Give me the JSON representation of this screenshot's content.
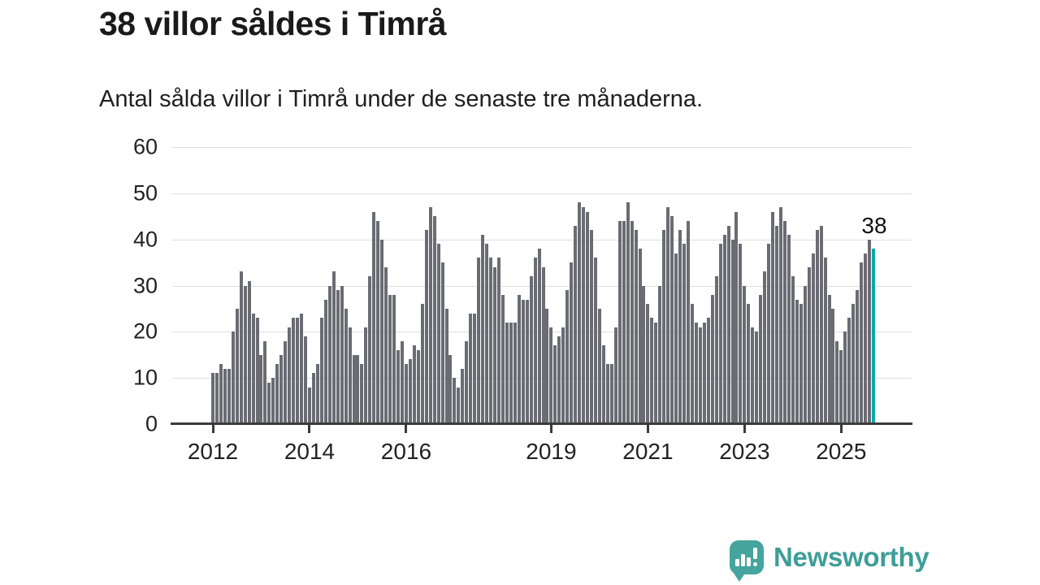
{
  "header": {
    "title": "38 villor såldes i Timrå",
    "subtitle": "Antal sålda villor i Timrå under de senaste tre månaderna."
  },
  "annotation": {
    "last_value_label": "38"
  },
  "footer": {
    "brand": "Newsworthy",
    "brand_color": "#3d9e98",
    "logo_icon": "speech-bubble-bar-chart-icon"
  },
  "chart_data": {
    "type": "bar",
    "title": "38 villor såldes i Timrå",
    "subtitle": "Antal sålda villor i Timrå under de senaste tre månaderna.",
    "frequency": "monthly",
    "x_start": "2012-01",
    "x_end": "2025-09",
    "ylim": [
      0,
      60
    ],
    "y_ticks": [
      0,
      10,
      20,
      30,
      40,
      50,
      60
    ],
    "x_ticks": [
      {
        "label": "2012",
        "index": 0
      },
      {
        "label": "2014",
        "index": 24
      },
      {
        "label": "2016",
        "index": 48
      },
      {
        "label": "2019",
        "index": 84
      },
      {
        "label": "2021",
        "index": 108
      },
      {
        "label": "2023",
        "index": 132
      },
      {
        "label": "2025",
        "index": 156
      }
    ],
    "grid": "horizontal",
    "legend": "none",
    "bar_color": "#6b6b73",
    "highlight": {
      "index": 164,
      "value": 38,
      "label": "38",
      "color": "#0aa9ac"
    },
    "values": [
      11,
      11,
      13,
      12,
      12,
      20,
      25,
      33,
      30,
      31,
      24,
      23,
      15,
      18,
      9,
      10,
      13,
      15,
      18,
      21,
      23,
      23,
      24,
      19,
      8,
      11,
      13,
      23,
      27,
      30,
      33,
      29,
      30,
      25,
      21,
      15,
      15,
      13,
      21,
      32,
      46,
      44,
      40,
      34,
      28,
      28,
      16,
      18,
      13,
      14,
      17,
      16,
      26,
      42,
      47,
      45,
      39,
      35,
      25,
      15,
      10,
      8,
      12,
      18,
      24,
      24,
      36,
      41,
      39,
      36,
      34,
      36,
      28,
      22,
      22,
      22,
      28,
      27,
      27,
      32,
      36,
      38,
      34,
      25,
      21,
      17,
      19,
      21,
      29,
      35,
      43,
      48,
      47,
      46,
      42,
      36,
      25,
      17,
      13,
      13,
      21,
      44,
      44,
      48,
      44,
      42,
      38,
      30,
      26,
      23,
      22,
      30,
      42,
      47,
      45,
      37,
      42,
      39,
      44,
      26,
      22,
      21,
      22,
      23,
      28,
      32,
      39,
      41,
      43,
      40,
      46,
      39,
      30,
      26,
      21,
      20,
      28,
      33,
      39,
      46,
      43,
      47,
      44,
      41,
      32,
      27,
      26,
      30,
      34,
      37,
      42,
      43,
      36,
      28,
      25,
      18,
      16,
      20,
      23,
      26,
      29,
      35,
      37,
      40,
      38
    ]
  }
}
